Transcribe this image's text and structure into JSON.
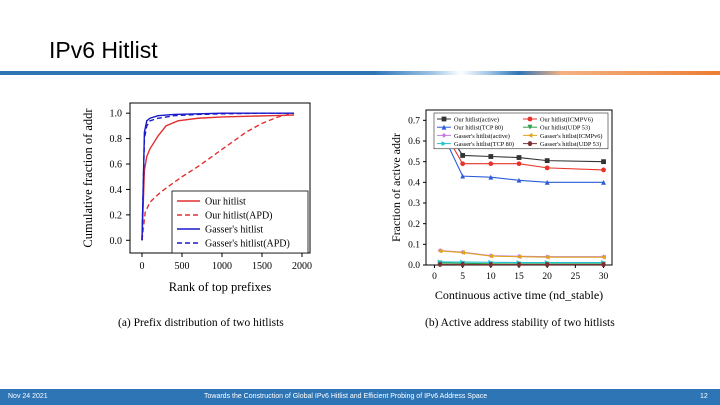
{
  "slide": {
    "title": "IPv6 Hitlist",
    "footer_date": "Nov 24 2021",
    "footer_title": "Towards the Construction of Global IPv6 Hitlist and Efficient Probing of IPv6 Address Space",
    "page_number": "12"
  },
  "colors": {
    "accent": "#2e75b6",
    "orange": "#ed7d31"
  },
  "chart_data": [
    {
      "type": "line",
      "caption": "(a) Prefix distribution of two hitlists",
      "xlabel": "Rank of top prefixes",
      "ylabel": "Cumulative fraction of addr",
      "xlim": [
        -150,
        2100
      ],
      "ylim": [
        -0.1,
        1.08
      ],
      "xticks": [
        0,
        500,
        1000,
        1500,
        2000
      ],
      "xtick_labels": [
        "0",
        "500",
        "1000",
        "1500",
        "2000"
      ],
      "yticks": [
        0.0,
        0.2,
        0.4,
        0.6,
        0.8,
        1.0
      ],
      "ytick_labels": [
        "0.0",
        "0.2",
        "0.4",
        "0.6",
        "0.8",
        "1.0"
      ],
      "legend_position": "bottom-right",
      "series": [
        {
          "name": "Our hitlist",
          "color": "#e03030",
          "dash": "solid",
          "x": [
            0,
            30,
            60,
            100,
            200,
            300,
            450,
            700,
            1000,
            1300,
            1600,
            1900
          ],
          "y": [
            0.0,
            0.55,
            0.66,
            0.72,
            0.82,
            0.9,
            0.94,
            0.96,
            0.97,
            0.975,
            0.98,
            0.985
          ]
        },
        {
          "name": "Our hitlist(APD)",
          "color": "#e03030",
          "dash": "dashed",
          "x": [
            0,
            40,
            100,
            200,
            300,
            500,
            700,
            900,
            1100,
            1300,
            1500,
            1700,
            1900
          ],
          "y": [
            0.0,
            0.22,
            0.3,
            0.36,
            0.41,
            0.5,
            0.58,
            0.67,
            0.76,
            0.85,
            0.92,
            0.97,
            1.0
          ]
        },
        {
          "name": "Gasser's hitlist",
          "color": "#1a1acc",
          "dash": "solid",
          "x": [
            0,
            30,
            60,
            100,
            200,
            400,
            700,
            1000,
            1500,
            1900
          ],
          "y": [
            0.0,
            0.85,
            0.94,
            0.96,
            0.98,
            0.99,
            0.995,
            1.0,
            1.0,
            1.0
          ]
        },
        {
          "name": "Gasser's hitlist(APD)",
          "color": "#1a1acc",
          "dash": "dashed",
          "x": [
            0,
            30,
            60,
            100,
            200,
            400,
            700,
            1000,
            1500,
            1900
          ],
          "y": [
            0.0,
            0.8,
            0.9,
            0.94,
            0.96,
            0.98,
            0.99,
            0.995,
            1.0,
            1.0
          ]
        }
      ]
    },
    {
      "type": "line",
      "caption": "(b) Active address stability of two hitlists",
      "xlabel": "Continuous active time (nd_stable)",
      "ylabel": "Fraction of active addr",
      "xlim": [
        -1.5,
        31.5
      ],
      "ylim": [
        0,
        0.75
      ],
      "xticks": [
        0,
        5,
        10,
        15,
        20,
        25,
        30
      ],
      "xtick_labels": [
        "0",
        "5",
        "10",
        "15",
        "20",
        "25",
        "30"
      ],
      "yticks": [
        0.0,
        0.1,
        0.2,
        0.3,
        0.4,
        0.5,
        0.6,
        0.7
      ],
      "ytick_labels": [
        "0.0",
        "0.1",
        "0.2",
        "0.3",
        "0.4",
        "0.5",
        "0.6",
        "0.7"
      ],
      "legend_position": "top",
      "x": [
        1,
        5,
        10,
        15,
        20,
        30
      ],
      "series": [
        {
          "name": "Our hitlist(active)",
          "color": "#333333",
          "marker": "square",
          "y": [
            0.7,
            0.53,
            0.525,
            0.52,
            0.505,
            0.5
          ]
        },
        {
          "name": "Our hitlist(ICMPV6)",
          "color": "#e8332a",
          "marker": "circle",
          "y": [
            0.68,
            0.49,
            0.49,
            0.49,
            0.47,
            0.46
          ]
        },
        {
          "name": "Our hitlist(TCP 80)",
          "color": "#2a5bd7",
          "marker": "triangle",
          "y": [
            0.66,
            0.43,
            0.425,
            0.41,
            0.4,
            0.4
          ]
        },
        {
          "name": "Our hitlist(UDP 53)",
          "color": "#2e9e4a",
          "marker": "triangle-down",
          "y": [
            0.01,
            0.008,
            0.006,
            0.005,
            0.005,
            0.005
          ]
        },
        {
          "name": "Gasser's hitlist(active)",
          "color": "#c77ae0",
          "marker": "diamond",
          "y": [
            0.07,
            0.062,
            0.045,
            0.042,
            0.04,
            0.04
          ]
        },
        {
          "name": "Gasser's hitlist(ICMPv6)",
          "color": "#e0a51c",
          "marker": "triangle-left",
          "y": [
            0.068,
            0.06,
            0.043,
            0.04,
            0.038,
            0.038
          ]
        },
        {
          "name": "Gasser's hitlist(TCP 80)",
          "color": "#20c0d0",
          "marker": "triangle-right",
          "y": [
            0.015,
            0.014,
            0.013,
            0.012,
            0.012,
            0.012
          ]
        },
        {
          "name": "Gasser's hitlist(UDP 53)",
          "color": "#7a3030",
          "marker": "hexagon",
          "y": [
            0.003,
            0.002,
            0.002,
            0.002,
            0.002,
            0.002
          ]
        }
      ]
    }
  ]
}
